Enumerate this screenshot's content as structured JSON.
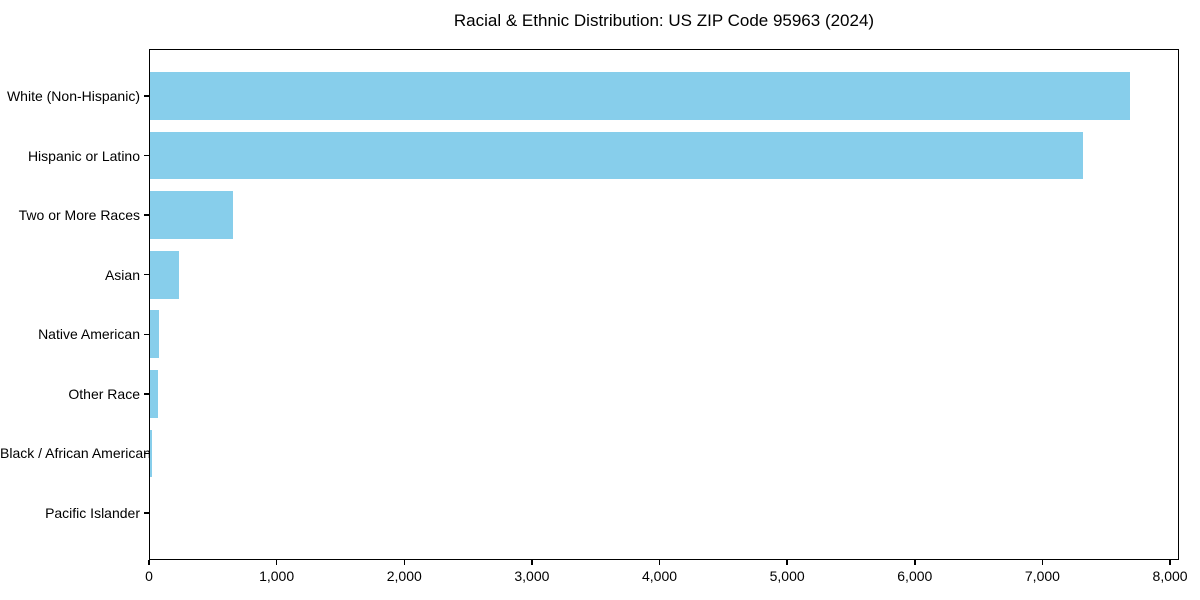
{
  "figure": {
    "title": "Racial & Ethnic Distribution: US ZIP Code 95963 (2024)"
  },
  "colors": {
    "bar": "#87CEEB",
    "axis": "#000000",
    "background": "#FFFFFF",
    "text": "#000000"
  },
  "chart_data": {
    "type": "bar",
    "orientation": "horizontal",
    "title": "Racial & Ethnic Distribution: US ZIP Code 95963 (2024)",
    "categories": [
      "White (Non-Hispanic)",
      "Hispanic or Latino",
      "Two or More Races",
      "Asian",
      "Native American",
      "Other Race",
      "Black / African American",
      "Pacific Islander"
    ],
    "values": [
      7690,
      7320,
      660,
      235,
      80,
      70,
      20,
      0
    ],
    "xlabel": "",
    "ylabel": "",
    "xlim": [
      0,
      8070
    ],
    "xticks": [
      0,
      1000,
      2000,
      3000,
      4000,
      5000,
      6000,
      7000,
      8000
    ],
    "xtick_labels": [
      "0",
      "1,000",
      "2,000",
      "3,000",
      "4,000",
      "5,000",
      "6,000",
      "7,000",
      "8,000"
    ],
    "grid": false,
    "legend": "none",
    "bar_color": "#87CEEB",
    "bar_height_frac": 0.8
  }
}
